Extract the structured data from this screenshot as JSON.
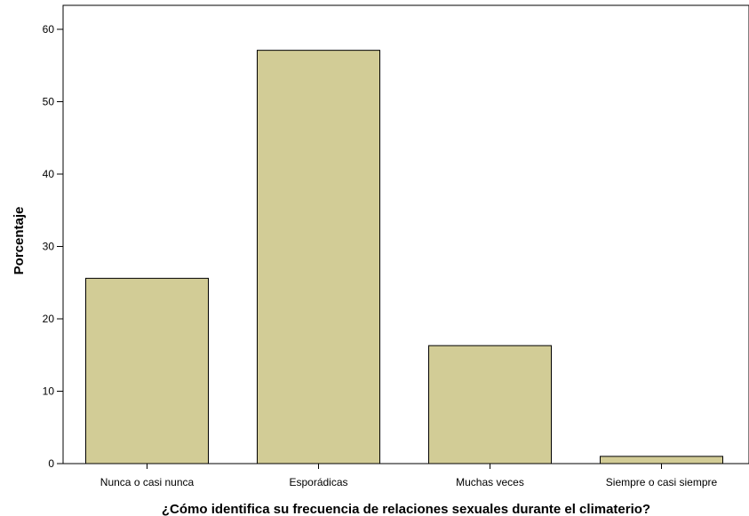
{
  "chart_data": {
    "type": "bar",
    "title": "",
    "xlabel": "¿Cómo identifica su frecuencia de relaciones sexuales durante el climaterio?",
    "ylabel": "Porcentaje",
    "categories": [
      "Nunca o casi nunca",
      "Esporádicas",
      "Muchas veces",
      "Siempre o casi siempre"
    ],
    "values": [
      25.6,
      57.1,
      16.3,
      1.0
    ],
    "ylim": [
      0,
      63
    ],
    "yticks": [
      0,
      10,
      20,
      30,
      40,
      50,
      60
    ],
    "grid": false,
    "legend": "none",
    "colors": {
      "bar_fill": "#d2cc96",
      "bar_stroke": "#000000",
      "plot_background": "#ffffff",
      "frame": "#000000"
    }
  }
}
